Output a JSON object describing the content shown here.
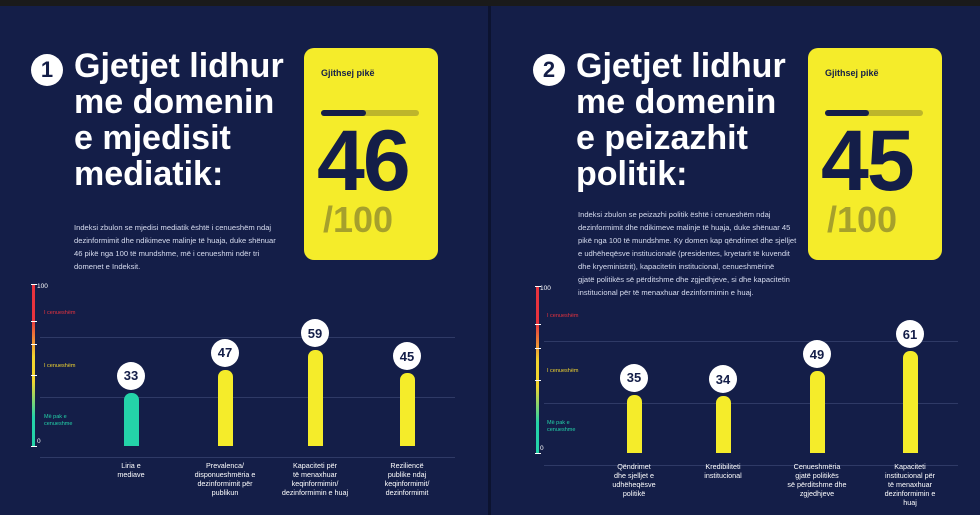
{
  "colors": {
    "background": "#141e48",
    "accent": "#f5ec2a",
    "low": "#24d3a9",
    "mid": "#f2d52f",
    "high": "#e8333e"
  },
  "pages": [
    {
      "number": "1",
      "heading_lines": [
        "Gjetjet lidhur",
        "me domenin",
        "e mjedisit",
        "mediatik:"
      ],
      "intro_lines": [
        "Indeksi zbulon se mjedisi mediatik është i cenueshëm ndaj",
        "dezinformimit dhe ndikimeve malinje të huaja, duke shënuar",
        "46 pikë nga 100 të mundshme, më i cenueshmi ndër tri",
        "domenet e Indeksit."
      ],
      "score": {
        "label": "Gjithsej pikë",
        "value": "46",
        "denominator": "/100",
        "fraction": 0.46
      }
    },
    {
      "number": "2",
      "heading_lines": [
        "Gjetjet lidhur",
        "me domenin",
        "e peizazhit",
        "politik:"
      ],
      "intro_lines": [
        "Indeksi zbulon se peizazhi politik është i cenueshëm ndaj",
        "dezinformimit dhe ndikimeve malinje të huaja, duke shënuar 45",
        "pikë nga 100 të mundshme. Ky domen kap qëndrimet dhe sjelljet",
        "e udhëheqësve institucionalë (presidentes, kryetarit të kuvendit",
        "dhe kryeministrit), kapacitetin institucional, cenueshmërinë",
        "gjatë politikës së përditshme dhe zgjedhjeve, si dhe kapacitetin",
        "institucional për të menaxhuar dezinformimin e huaj."
      ],
      "score": {
        "label": "Gjithsej pikë",
        "value": "45",
        "denominator": "/100",
        "fraction": 0.45
      }
    }
  ],
  "axis": {
    "max_label": "100",
    "min_label": "0"
  },
  "zones": [
    {
      "lines": [
        "I cenueshëm"
      ],
      "color": "#e8333e"
    },
    {
      "lines": [
        "I cenueshëm"
      ],
      "color": "#f2d52f"
    },
    {
      "lines": [
        "Më pak e",
        "cenueshme"
      ],
      "color": "#24d3a9"
    }
  ],
  "chart_data": [
    {
      "type": "bar",
      "title": "Gjetjet lidhur me domenin e mjedisit mediatik",
      "ylim": [
        0,
        100
      ],
      "categories": [
        [
          "Liria e",
          "mediave"
        ],
        [
          "Prevalenca/",
          "disponueshmëria e",
          "dezinformimit për",
          "publikun"
        ],
        [
          "Kapaciteti për",
          "të menaxhuar",
          "keqinformimin/",
          "dezinformimin e huaj"
        ],
        [
          "Reziliencë",
          "publike ndaj",
          "keqinformimit/",
          "dezinformimit"
        ]
      ],
      "values": [
        33,
        47,
        59,
        45
      ],
      "bar_colors": [
        "#24d3a9",
        "#f5ec2a",
        "#f5ec2a",
        "#f5ec2a"
      ]
    },
    {
      "type": "bar",
      "title": "Gjetjet lidhur me domenin e peizazhit politik",
      "ylim": [
        0,
        100
      ],
      "categories": [
        [
          "Qëndrimet",
          "dhe sjelljet e",
          "udhëheqësve",
          "politikë"
        ],
        [
          "Kredibiliteti",
          "institucional"
        ],
        [
          "Cenueshmëria",
          "gjatë politikës",
          "së përditshme dhe",
          "zgjedhjeve"
        ],
        [
          "Kapaciteti",
          "institucional për",
          "të menaxhuar",
          "dezinformimin e",
          "huaj"
        ]
      ],
      "values": [
        35,
        34,
        49,
        61
      ],
      "bar_colors": [
        "#f5ec2a",
        "#f5ec2a",
        "#f5ec2a",
        "#f5ec2a"
      ]
    }
  ]
}
